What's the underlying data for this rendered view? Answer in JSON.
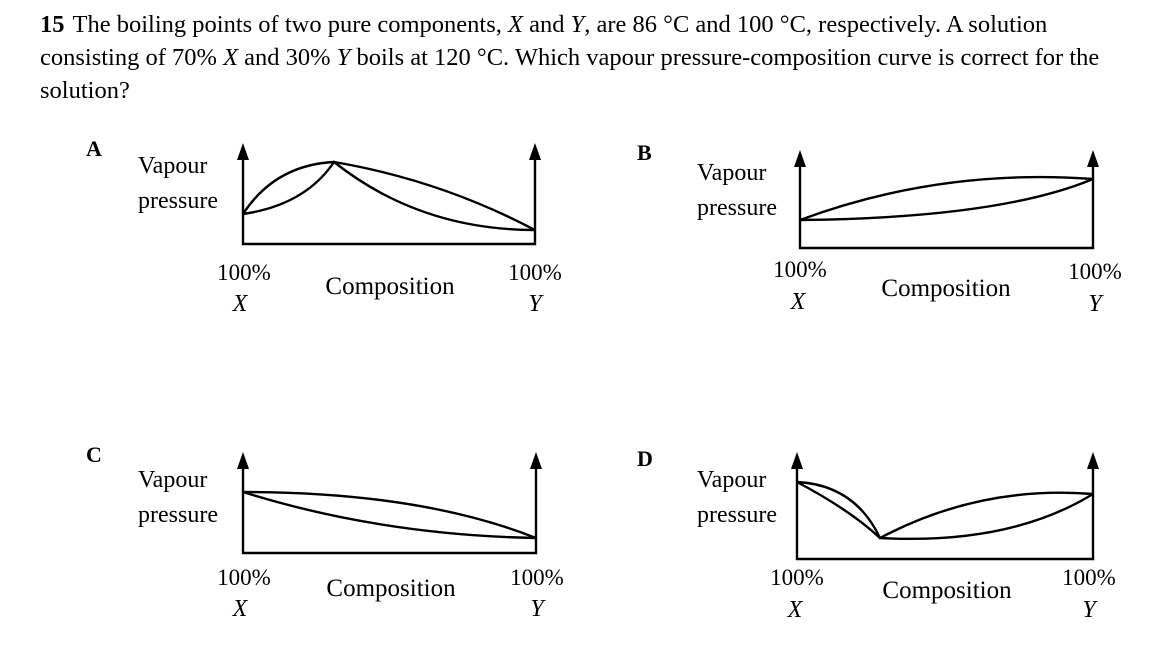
{
  "question": {
    "number": "15",
    "text_parts": [
      {
        "t": "The boiling points of two pure components, ",
        "i": false
      },
      {
        "t": "X",
        "i": true
      },
      {
        "t": " and ",
        "i": false
      },
      {
        "t": "Y",
        "i": true
      },
      {
        "t": ", are 86 °C and 100 °C, respectively. A solution consisting of 70% ",
        "i": false
      },
      {
        "t": "X",
        "i": true
      },
      {
        "t": " and 30% ",
        "i": false
      },
      {
        "t": "Y",
        "i": true
      },
      {
        "t": " boils at 120 °C. Which vapour pressure-composition curve is correct for the solution?",
        "i": false
      }
    ]
  },
  "options": [
    {
      "letter": "A",
      "ylabel_line1": "Vapour",
      "ylabel_line2": "pressure",
      "xlabel": "Composition",
      "left_tick": "100%",
      "left_var": "X",
      "right_tick": "100%",
      "right_var": "Y",
      "shape": "maximum"
    },
    {
      "letter": "B",
      "ylabel_line1": "Vapour",
      "ylabel_line2": "pressure",
      "xlabel": "Composition",
      "left_tick": "100%",
      "left_var": "X",
      "right_tick": "100%",
      "right_var": "Y",
      "shape": "increasing"
    },
    {
      "letter": "C",
      "ylabel_line1": "Vapour",
      "ylabel_line2": "pressure",
      "xlabel": "Composition",
      "left_tick": "100%",
      "left_var": "X",
      "right_tick": "100%",
      "right_var": "Y",
      "shape": "decreasing"
    },
    {
      "letter": "D",
      "ylabel_line1": "Vapour",
      "ylabel_line2": "pressure",
      "xlabel": "Composition",
      "left_tick": "100%",
      "left_var": "X",
      "right_tick": "100%",
      "right_var": "Y",
      "shape": "minimum"
    }
  ]
}
